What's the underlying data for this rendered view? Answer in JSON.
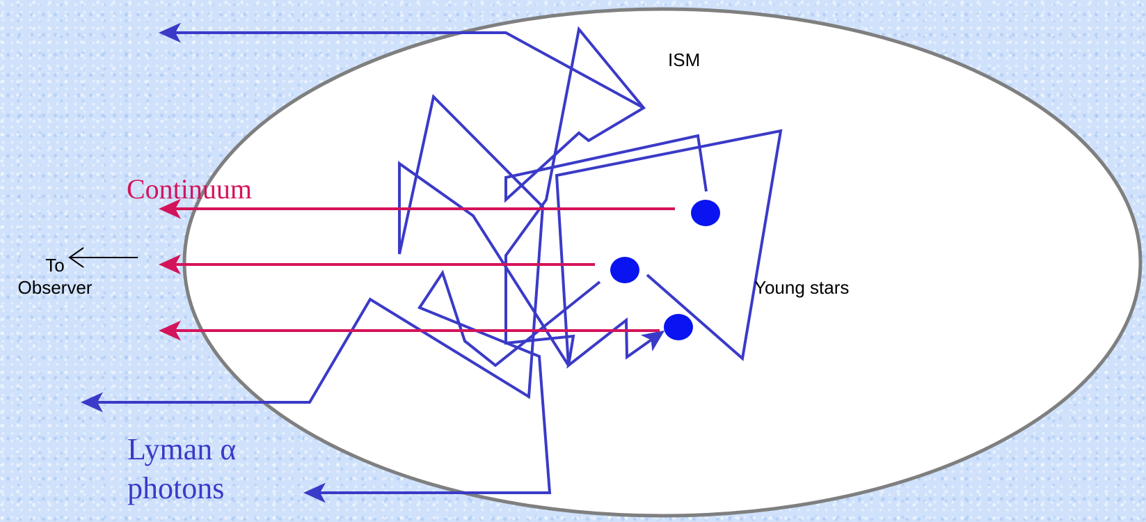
{
  "labels": {
    "ism": "ISM",
    "young_stars": "Young stars",
    "continuum": "Continuum",
    "observer_line1": "To",
    "observer_line2": "Observer",
    "lyman_line1": "Lyman α",
    "lyman_line2": "photons"
  },
  "colors": {
    "background": "#cfe1fb",
    "ism_fill": "#ffffff",
    "ism_stroke": "#7f7f7f",
    "photon_path": "#3a3ac8",
    "continuum": "#d4145a",
    "star": "#0a14f0",
    "observer_arrow": "#000000"
  }
}
